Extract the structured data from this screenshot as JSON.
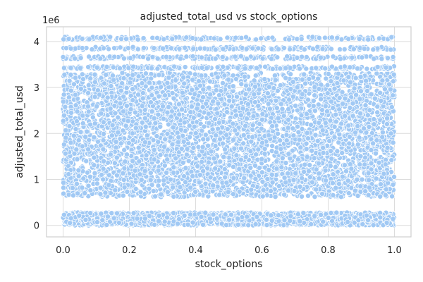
{
  "chart_data": {
    "type": "scatter",
    "title": "adjusted_total_usd vs stock_options",
    "xlabel": "stock_options",
    "ylabel": "adjusted_total_usd",
    "y_offset_label": "1e6",
    "xlim": [
      -0.05,
      1.05
    ],
    "ylim": [
      -0.25,
      4.32
    ],
    "x_ticks": [
      0.0,
      0.2,
      0.4,
      0.6,
      0.8,
      1.0
    ],
    "x_tick_labels": [
      "0.0",
      "0.2",
      "0.4",
      "0.6",
      "0.8",
      "1.0"
    ],
    "y_ticks": [
      0,
      1,
      2,
      3,
      4
    ],
    "y_tick_labels": [
      "0",
      "1",
      "2",
      "3",
      "4"
    ],
    "grid": true,
    "point_color": "#a1c9f4",
    "series": [
      {
        "bands": [
          {
            "y_min": 0.0,
            "y_max": 0.28,
            "count": 1800
          },
          {
            "y_min": 0.62,
            "y_max": 3.32,
            "count": 7000
          },
          {
            "y_min": 3.4,
            "y_max": 3.46,
            "count": 260
          },
          {
            "y_min": 3.62,
            "y_max": 3.68,
            "count": 240
          },
          {
            "y_min": 3.82,
            "y_max": 3.88,
            "count": 220
          },
          {
            "y_min": 4.04,
            "y_max": 4.1,
            "count": 200
          }
        ],
        "x_range": [
          0.0,
          1.0
        ]
      }
    ]
  }
}
